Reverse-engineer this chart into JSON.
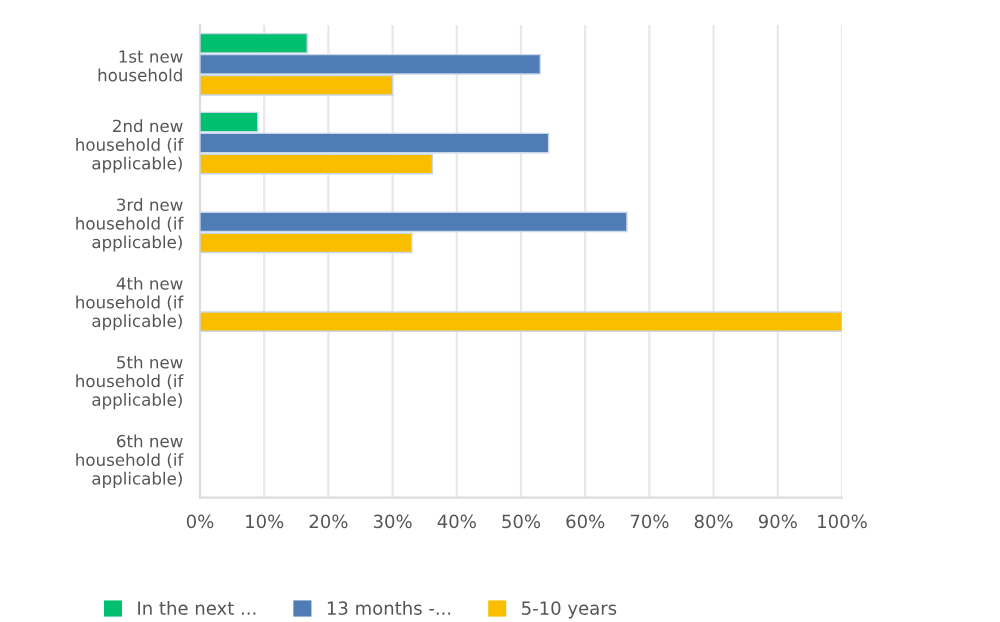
{
  "chart_data": {
    "type": "bar",
    "orientation": "horizontal",
    "categories": [
      "1st new household",
      "2nd new household (if applicable)",
      "3rd new household (if applicable)",
      "4th new household (if applicable)",
      "5th new household (if applicable)",
      "6th new household (if applicable)"
    ],
    "series": [
      {
        "name": "In the next ...",
        "color": "#00bf6f",
        "values": [
          16.7,
          9,
          null,
          null,
          null,
          null
        ]
      },
      {
        "name": "13 months -...",
        "color": "#507cb6",
        "values": [
          53,
          54.3,
          66.5,
          null,
          null,
          null
        ]
      },
      {
        "name": "5-10 years",
        "color": "#f9be00",
        "values": [
          30,
          36.2,
          33,
          100,
          null,
          null
        ]
      }
    ],
    "xlim": [
      0,
      100
    ],
    "xticks": [
      {
        "value": 0,
        "label": "0%"
      },
      {
        "value": 10,
        "label": "10%"
      },
      {
        "value": 20,
        "label": "20%"
      },
      {
        "value": 30,
        "label": "30%"
      },
      {
        "value": 40,
        "label": "40%"
      },
      {
        "value": 50,
        "label": "50%"
      },
      {
        "value": 60,
        "label": "60%"
      },
      {
        "value": 70,
        "label": "70%"
      },
      {
        "value": 80,
        "label": "80%"
      },
      {
        "value": 90,
        "label": "90%"
      },
      {
        "value": 100,
        "label": "100%"
      }
    ],
    "grid": "x",
    "legend": "bottom"
  }
}
